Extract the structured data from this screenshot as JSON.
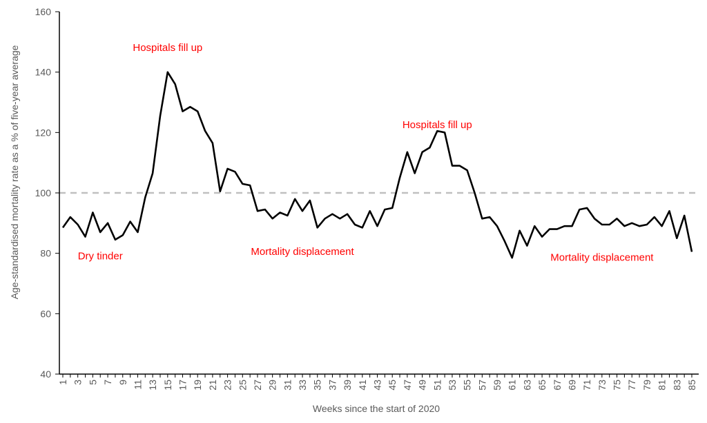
{
  "chart_data": {
    "type": "line",
    "title": "",
    "xlabel": "Weeks since the start of 2020",
    "ylabel": "Age-standardised mortality rate as a % of five-year average",
    "ylim": [
      40,
      160
    ],
    "yticks": [
      40,
      60,
      80,
      100,
      120,
      140,
      160
    ],
    "xlim": [
      1,
      85
    ],
    "xticks": [
      1,
      3,
      5,
      7,
      9,
      11,
      13,
      15,
      17,
      19,
      21,
      23,
      25,
      27,
      29,
      31,
      33,
      35,
      37,
      39,
      41,
      43,
      45,
      47,
      49,
      51,
      53,
      55,
      57,
      59,
      61,
      63,
      65,
      67,
      69,
      71,
      73,
      75,
      77,
      79,
      81,
      83,
      85
    ],
    "grid": false,
    "reference_line": {
      "y": 100,
      "style": "dashed",
      "color": "#bfbfbf"
    },
    "series": [
      {
        "color": "#000000",
        "x": [
          1,
          2,
          3,
          4,
          5,
          6,
          7,
          8,
          9,
          10,
          11,
          12,
          13,
          14,
          15,
          16,
          17,
          18,
          19,
          20,
          21,
          22,
          23,
          24,
          25,
          26,
          27,
          28,
          29,
          30,
          31,
          32,
          33,
          34,
          35,
          36,
          37,
          38,
          39,
          40,
          41,
          42,
          43,
          44,
          45,
          46,
          47,
          48,
          49,
          50,
          51,
          52,
          53,
          54,
          55,
          56,
          57,
          58,
          59,
          60,
          61,
          62,
          63,
          64,
          65,
          66,
          67,
          68,
          69,
          70,
          71,
          72,
          73,
          74,
          75,
          76,
          77,
          78,
          79,
          80,
          81,
          82,
          83,
          84,
          85
        ],
        "values": [
          88.5,
          92,
          89.5,
          85.5,
          93.5,
          87,
          90,
          84.5,
          86,
          90.5,
          87,
          98.5,
          106.5,
          125.5,
          140,
          136,
          127,
          128.5,
          127,
          120.5,
          116.5,
          100.5,
          108,
          107,
          103,
          102.5,
          94,
          94.5,
          91.5,
          93.5,
          92.5,
          98,
          94,
          97.5,
          88.5,
          91.5,
          93,
          91.5,
          93,
          89.5,
          88.5,
          94,
          89,
          94.5,
          95,
          105,
          113.5,
          106.5,
          113.5,
          115,
          120.5,
          120,
          109,
          109,
          107.5,
          100,
          91.5,
          92,
          89,
          84,
          78.5,
          87.5,
          82.5,
          89,
          85.5,
          88,
          88,
          89,
          89,
          94.5,
          95,
          91.5,
          89.5,
          89.5,
          91.5,
          89,
          90,
          89,
          89.5,
          92,
          89,
          94,
          85,
          92.5,
          80.5
        ]
      }
    ],
    "annotations": [
      {
        "text": "Hospitals fill up",
        "x": 15,
        "y": 147
      },
      {
        "text": "Hospitals fill up",
        "x": 51,
        "y": 121.5
      },
      {
        "text": "Dry tinder",
        "x": 6,
        "y": 78
      },
      {
        "text": "Mortality displacement",
        "x": 33,
        "y": 79.5
      },
      {
        "text": "Mortality displacement",
        "x": 73,
        "y": 77.5
      }
    ]
  }
}
